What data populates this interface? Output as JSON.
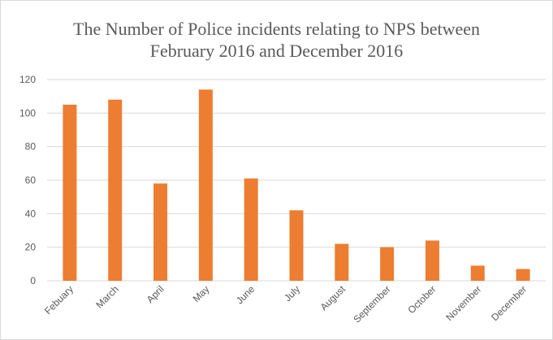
{
  "chart_data": {
    "type": "bar",
    "title": [
      "The Number of Police incidents relating to NPS between",
      "February 2016 and December 2016"
    ],
    "categories": [
      "Febuary",
      "March",
      "April",
      "May",
      "June",
      "July",
      "August",
      "September",
      "October",
      "November",
      "December"
    ],
    "values": [
      105,
      108,
      58,
      114,
      61,
      42,
      22,
      20,
      24,
      9,
      7
    ],
    "yticks": [
      0,
      20,
      40,
      60,
      80,
      100,
      120
    ],
    "ylim": [
      0,
      120
    ],
    "xlabel": "",
    "ylabel": "",
    "grid": true,
    "legend": "none",
    "bar_color": "#ed7d31",
    "grid_color": "#d9d9d9",
    "text_color": "#595959"
  }
}
